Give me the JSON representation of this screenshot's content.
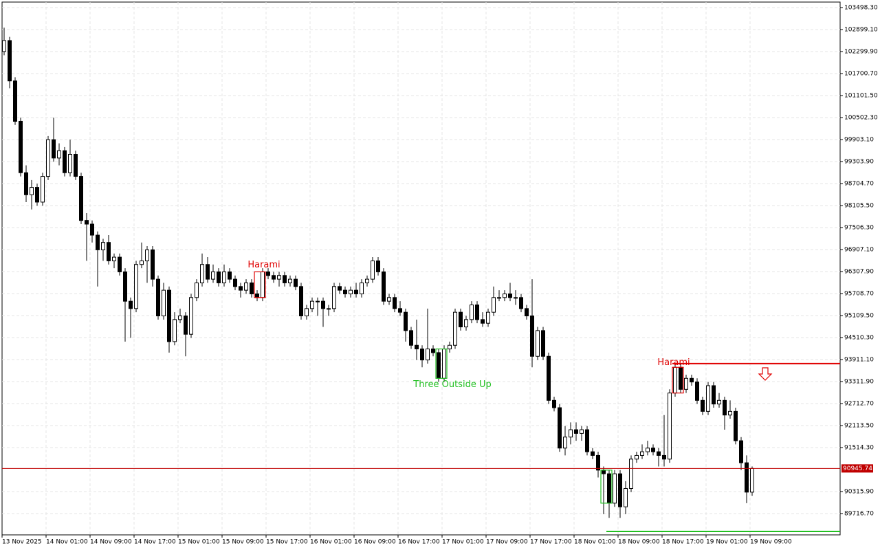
{
  "chart_data": {
    "type": "candlestick",
    "categories": [
      "13 Nov 2025",
      null,
      null,
      null,
      null,
      null,
      null,
      null,
      "14 Nov 01:00",
      null,
      null,
      null,
      null,
      null,
      null,
      null,
      "14 Nov 09:00",
      null,
      null,
      null,
      null,
      null,
      null,
      null,
      "14 Nov 17:00",
      null,
      null,
      null,
      null,
      null,
      null,
      null,
      "15 Nov 01:00",
      null,
      null,
      null,
      null,
      null,
      null,
      null,
      "15 Nov 09:00",
      null,
      null,
      null,
      null,
      null,
      null,
      null,
      "15 Nov 17:00",
      null,
      null,
      null,
      null,
      null,
      null,
      null,
      "16 Nov 01:00",
      null,
      null,
      null,
      null,
      null,
      null,
      null,
      "16 Nov 09:00",
      null,
      null,
      null,
      null,
      null,
      null,
      null,
      "16 Nov 17:00",
      null,
      null,
      null,
      null,
      null,
      null,
      null,
      "17 Nov 01:00",
      null,
      null,
      null,
      null,
      null,
      null,
      null,
      "17 Nov 09:00",
      null,
      null,
      null,
      null,
      null,
      null,
      null,
      "17 Nov 17:00",
      null,
      null,
      null,
      null,
      null,
      null,
      null,
      "18 Nov 01:00",
      null,
      null,
      null,
      null,
      null,
      null,
      null,
      "18 Nov 09:00",
      null,
      null,
      null,
      null,
      null,
      null,
      null,
      "18 Nov 17:00",
      null,
      null,
      null,
      null,
      null,
      null,
      null,
      "19 Nov 01:00",
      null,
      null,
      null,
      null,
      null,
      null,
      null,
      "19 Nov 09:00"
    ],
    "open": [
      102300,
      102600,
      101500,
      100400,
      99000,
      98400,
      98600,
      98200,
      98900,
      99900,
      99400,
      99600,
      99000,
      99500,
      98900,
      97700,
      97600,
      97300,
      96900,
      97100,
      96600,
      96700,
      96300,
      95500,
      95300,
      96500,
      96600,
      96900,
      96100,
      95100,
      95800,
      94400,
      95000,
      95100,
      94600,
      95600,
      96000,
      96500,
      96100,
      96300,
      96000,
      96300,
      96100,
      95900,
      95800,
      96000,
      95700,
      95600,
      96300,
      96200,
      96100,
      96200,
      96000,
      96100,
      95900,
      95100,
      95300,
      95500,
      95500,
      95300,
      95300,
      95900,
      95800,
      95700,
      95800,
      95700,
      96000,
      96100,
      96600,
      96300,
      95500,
      95600,
      95300,
      95200,
      94700,
      94300,
      94200,
      93900,
      94200,
      94100,
      93400,
      94200,
      94300,
      95200,
      94800,
      95000,
      95400,
      95000,
      94900,
      95200,
      95600,
      95600,
      95700,
      95600,
      95600,
      95300,
      95100,
      94000,
      94700,
      94000,
      92800,
      92600,
      91500,
      91800,
      92000,
      91900,
      92000,
      91400,
      91300,
      90900,
      90800,
      90000,
      90800,
      89900,
      90400,
      91200,
      91300,
      91400,
      91500,
      91400,
      91300,
      91200,
      93000,
      93700,
      93100,
      93400,
      93300,
      92800,
      92500,
      93200,
      92700,
      92800,
      92400,
      92500,
      91700,
      91100,
      90300
    ],
    "high": [
      102950,
      102700,
      101600,
      100500,
      99200,
      98800,
      98700,
      99000,
      100000,
      100500,
      99800,
      99700,
      99900,
      99600,
      99000,
      97900,
      97700,
      97400,
      97200,
      97300,
      96800,
      96800,
      96400,
      95600,
      96600,
      97100,
      97000,
      97000,
      96200,
      96000,
      95900,
      95200,
      95300,
      95200,
      95700,
      96100,
      96800,
      96700,
      96500,
      96400,
      96500,
      96400,
      96200,
      96000,
      96100,
      96100,
      95800,
      96400,
      96400,
      96300,
      96300,
      96300,
      96200,
      96200,
      96000,
      95400,
      95600,
      95600,
      95600,
      95400,
      96000,
      96000,
      95900,
      95900,
      96000,
      96100,
      96200,
      96700,
      96700,
      96400,
      95700,
      95700,
      95500,
      95300,
      94800,
      95000,
      94300,
      95300,
      94300,
      94200,
      94300,
      94400,
      95300,
      95300,
      95100,
      95500,
      95500,
      95200,
      95300,
      95900,
      95800,
      95800,
      96000,
      95800,
      95700,
      95400,
      96100,
      94800,
      94800,
      94100,
      92900,
      92700,
      92100,
      92200,
      92200,
      92100,
      92100,
      91500,
      91400,
      91000,
      90900,
      90900,
      90900,
      90600,
      91300,
      91400,
      91600,
      91700,
      91600,
      91500,
      92400,
      93100,
      93800,
      93800,
      93500,
      93500,
      93400,
      92900,
      93300,
      93300,
      93000,
      92900,
      92800,
      92600,
      91800,
      91300,
      91000
    ],
    "low": [
      102200,
      101300,
      100300,
      98900,
      98200,
      98000,
      98100,
      98100,
      98800,
      99300,
      99200,
      98900,
      98900,
      98800,
      97600,
      96600,
      97100,
      95900,
      96600,
      96500,
      96400,
      96200,
      94400,
      94500,
      95200,
      96400,
      96000,
      95900,
      95000,
      95000,
      94100,
      94300,
      94900,
      94000,
      94500,
      95500,
      95900,
      96000,
      96000,
      95900,
      95900,
      96000,
      95800,
      95600,
      95700,
      95600,
      95500,
      95500,
      96100,
      96000,
      95900,
      95900,
      95900,
      95800,
      95000,
      95000,
      95200,
      95100,
      94800,
      95100,
      95200,
      95700,
      95600,
      95600,
      95600,
      95600,
      95900,
      96000,
      96200,
      95400,
      95400,
      95200,
      95100,
      94400,
      94200,
      93900,
      93700,
      93800,
      94000,
      93300,
      93300,
      94100,
      94200,
      94700,
      94700,
      94900,
      94900,
      94800,
      94800,
      95100,
      95500,
      95500,
      95500,
      95400,
      95200,
      95000,
      93700,
      93900,
      93900,
      92700,
      92500,
      91400,
      91300,
      91600,
      91700,
      91700,
      91300,
      91200,
      90700,
      89700,
      89600,
      89900,
      89600,
      89700,
      90300,
      91100,
      91200,
      91300,
      91300,
      91000,
      91000,
      91100,
      92900,
      93000,
      93000,
      93200,
      92700,
      92400,
      92400,
      92600,
      92600,
      92000,
      92300,
      91600,
      90900,
      90000,
      90200
    ],
    "close": [
      102600,
      101500,
      100400,
      99000,
      98400,
      98600,
      98200,
      98900,
      99900,
      99400,
      99600,
      99000,
      99500,
      98900,
      97700,
      97600,
      97300,
      96900,
      97100,
      96600,
      96700,
      96300,
      95500,
      95300,
      96500,
      96600,
      96900,
      96100,
      95100,
      95800,
      94400,
      95000,
      95100,
      94600,
      95600,
      96000,
      96500,
      96100,
      96300,
      96000,
      96300,
      96100,
      95900,
      95800,
      96000,
      95700,
      95600,
      96300,
      96200,
      96100,
      96200,
      96000,
      96100,
      95900,
      95100,
      95300,
      95500,
      95500,
      95300,
      95300,
      95900,
      95800,
      95700,
      95800,
      95700,
      96000,
      96100,
      96600,
      96300,
      95500,
      95600,
      95300,
      95200,
      94700,
      94300,
      94200,
      93900,
      94200,
      94100,
      93400,
      94200,
      94300,
      95200,
      94800,
      95000,
      95400,
      95000,
      94900,
      95200,
      95600,
      95600,
      95700,
      95600,
      95600,
      95300,
      95100,
      94000,
      94700,
      94000,
      92800,
      92600,
      91500,
      91800,
      92000,
      91900,
      92000,
      91400,
      91300,
      90900,
      90800,
      90000,
      90800,
      89900,
      90400,
      91200,
      91300,
      91400,
      91500,
      91400,
      91300,
      91200,
      93000,
      93700,
      93100,
      93400,
      93300,
      92800,
      92500,
      93200,
      92700,
      92800,
      92400,
      92500,
      91700,
      91100,
      90300,
      90945.74
    ],
    "bull_color": "#ffffff",
    "bear_color": "#000000",
    "outline_color": "#000000",
    "ylim": [
      89136,
      103648
    ],
    "yticks": [
      {
        "value": 103498.3,
        "label": "103498.30"
      },
      {
        "value": 102899.1,
        "label": "102899.10"
      },
      {
        "value": 102299.9,
        "label": "102299.90"
      },
      {
        "value": 101700.7,
        "label": "101700.70"
      },
      {
        "value": 101101.5,
        "label": "101101.50"
      },
      {
        "value": 100502.3,
        "label": "100502.30"
      },
      {
        "value": 99903.1,
        "label": "99903.10"
      },
      {
        "value": 99303.9,
        "label": "99303.90"
      },
      {
        "value": 98704.7,
        "label": "98704.70"
      },
      {
        "value": 98105.5,
        "label": "98105.50"
      },
      {
        "value": 97506.3,
        "label": "97506.30"
      },
      {
        "value": 96907.1,
        "label": "96907.10"
      },
      {
        "value": 96307.9,
        "label": "96307.90"
      },
      {
        "value": 95708.7,
        "label": "95708.70"
      },
      {
        "value": 95109.5,
        "label": "95109.50"
      },
      {
        "value": 94510.3,
        "label": "94510.30"
      },
      {
        "value": 93911.1,
        "label": "93911.10"
      },
      {
        "value": 93311.9,
        "label": "93311.90"
      },
      {
        "value": 92712.7,
        "label": "92712.70"
      },
      {
        "value": 92113.5,
        "label": "92113.50"
      },
      {
        "value": 91514.3,
        "label": "91514.30"
      },
      {
        "value": 90315.9,
        "label": "90315.90"
      },
      {
        "value": 89716.7,
        "label": "89716.70"
      }
    ],
    "grid": true,
    "last_price": 90945.74,
    "last_price_color": "#c00000",
    "levels": [
      {
        "value": 93800,
        "color": "#e00000"
      },
      {
        "value": 89230,
        "color": "#22c022"
      }
    ],
    "annotations": [
      {
        "text": "Harami",
        "color": "#e00000"
      },
      {
        "text": "Three Outside Up",
        "color": "#22c022"
      },
      {
        "text": "Harami",
        "color": "#e00000"
      }
    ]
  }
}
